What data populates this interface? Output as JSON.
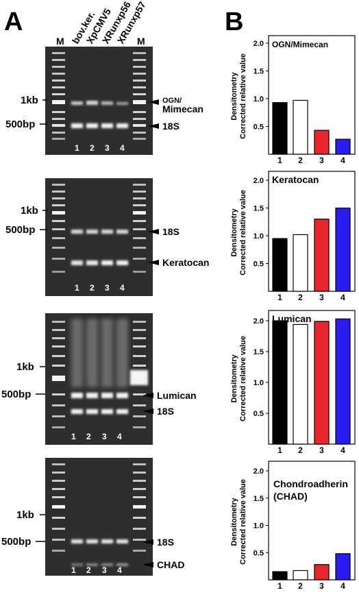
{
  "panel_labels": {
    "a": "A",
    "b": "B"
  },
  "gel_column_headers": [
    "M",
    "bov.ker.",
    "XpCMV5",
    "XRunxp56",
    "XRunxp57",
    "M"
  ],
  "lane_numbers": [
    "1",
    "2",
    "3",
    "4"
  ],
  "size_markers": {
    "kb1": "1kb",
    "bp500": "500bp"
  },
  "gels": [
    {
      "band_labels": [
        "OGN/",
        "Mimecan",
        "18S"
      ]
    },
    {
      "band_labels": [
        "18S",
        "Keratocan"
      ]
    },
    {
      "band_labels": [
        "Lumican",
        "18S"
      ]
    },
    {
      "band_labels": [
        "18S",
        "CHAD"
      ]
    }
  ],
  "ylabel_line1": "Densitometry",
  "ylabel_line2": "Corrected relative value",
  "colors": {
    "lane1": "#000000",
    "lane2": "#ffffff",
    "lane3": "#e8262b",
    "lane4": "#2a1cf0",
    "gel_bg": "#2e2e2e"
  },
  "chart_data": [
    {
      "type": "bar",
      "title": "OGN/Mimecan",
      "categories": [
        "1",
        "2",
        "3",
        "4"
      ],
      "values": [
        0.93,
        0.97,
        0.43,
        0.27
      ],
      "yticks": [
        "0.5",
        "1.0",
        "1.5",
        "2.0"
      ],
      "ylim": [
        0,
        2.1
      ]
    },
    {
      "type": "bar",
      "title": "Keratocan",
      "categories": [
        "1",
        "2",
        "3",
        "4"
      ],
      "values": [
        0.95,
        1.02,
        1.3,
        1.5
      ],
      "yticks": [
        "0.5",
        "1.0",
        "1.5",
        "2.0"
      ],
      "ylim": [
        0,
        2.1
      ]
    },
    {
      "type": "bar",
      "title": "Lumican",
      "categories": [
        "1",
        "2",
        "3",
        "4"
      ],
      "values": [
        2.0,
        1.94,
        1.99,
        2.03
      ],
      "yticks": [
        "0.5",
        "1.0",
        "1.5",
        "2.0"
      ],
      "ylim": [
        0,
        2.1
      ]
    },
    {
      "type": "bar",
      "title": "Chondroadherin",
      "subtitle": "(CHAD)",
      "categories": [
        "1",
        "2",
        "3",
        "4"
      ],
      "values": [
        0.15,
        0.17,
        0.28,
        0.48
      ],
      "yticks": [
        "0.5",
        "1.0",
        "1.5",
        "2.0"
      ],
      "ylim": [
        0,
        2.1
      ]
    }
  ]
}
